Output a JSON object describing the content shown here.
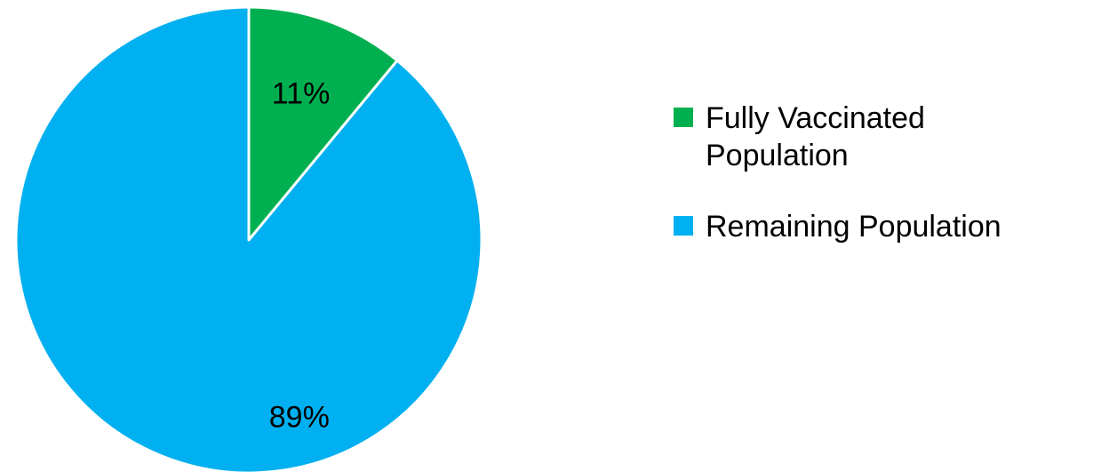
{
  "chart_data": {
    "type": "pie",
    "slices": [
      {
        "label": "Fully Vaccinated Population",
        "value": 11,
        "color": "#00B050",
        "data_label": "11%"
      },
      {
        "label": "Remaining Population",
        "value": 89,
        "color": "#00B0F0",
        "data_label": "89%"
      }
    ],
    "start_angle": "12 o'clock, clockwise",
    "legend_position": "right"
  }
}
